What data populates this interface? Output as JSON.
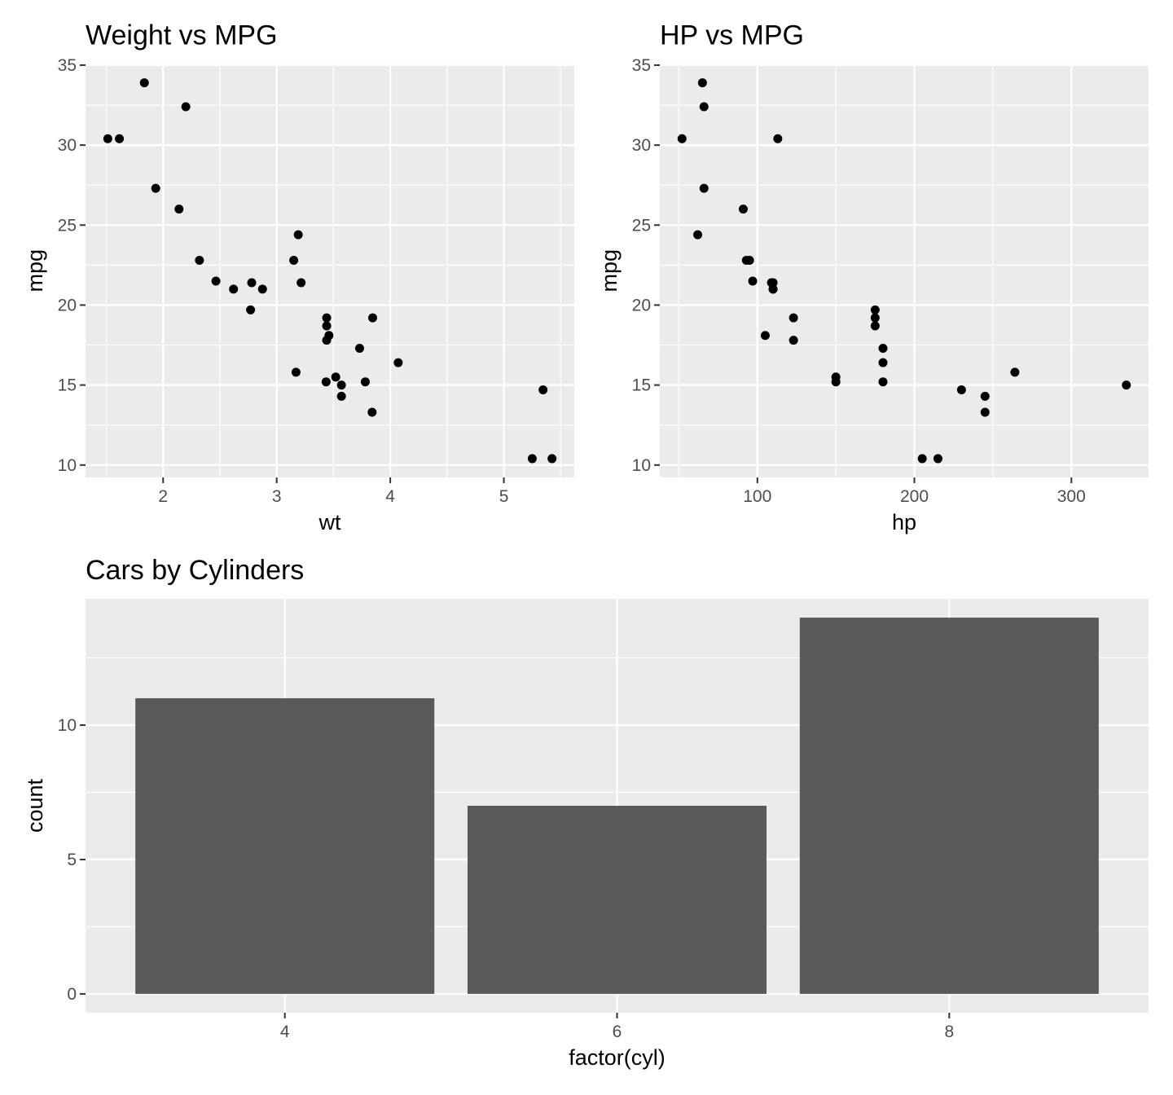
{
  "chart_data": [
    {
      "type": "scatter",
      "title": "Weight vs MPG",
      "xlabel": "wt",
      "ylabel": "mpg",
      "xlim": [
        1.317,
        5.62
      ],
      "ylim": [
        9.225,
        35.075
      ],
      "xticks": [
        2,
        3,
        4,
        5
      ],
      "xminor": [
        1.5,
        2.5,
        3.5,
        4.5,
        5.5
      ],
      "yticks": [
        10,
        15,
        20,
        25,
        30,
        35
      ],
      "yminor": [
        12.5,
        17.5,
        22.5,
        27.5,
        32.5
      ],
      "grid": true,
      "x": [
        2.62,
        2.875,
        2.32,
        3.215,
        3.44,
        3.46,
        3.57,
        3.19,
        3.15,
        3.44,
        3.44,
        4.07,
        3.73,
        3.78,
        5.25,
        5.424,
        5.345,
        2.2,
        1.615,
        1.835,
        2.465,
        3.52,
        3.435,
        3.84,
        3.845,
        1.935,
        2.14,
        1.513,
        3.17,
        2.77,
        3.57,
        2.78
      ],
      "y": [
        21,
        21,
        22.8,
        21.4,
        18.7,
        18.1,
        14.3,
        24.4,
        22.8,
        19.2,
        17.8,
        16.4,
        17.3,
        15.2,
        10.4,
        10.4,
        14.7,
        32.4,
        30.4,
        33.9,
        21.5,
        15.5,
        15.2,
        13.3,
        19.2,
        27.3,
        26,
        30.4,
        15.8,
        19.7,
        15,
        21.4
      ]
    },
    {
      "type": "scatter",
      "title": "HP vs MPG",
      "xlabel": "hp",
      "ylabel": "mpg",
      "xlim": [
        37.85,
        349.15
      ],
      "ylim": [
        9.225,
        35.075
      ],
      "xticks": [
        100,
        200,
        300
      ],
      "xminor": [
        50,
        150,
        250
      ],
      "yticks": [
        10,
        15,
        20,
        25,
        30,
        35
      ],
      "yminor": [
        12.5,
        17.5,
        22.5,
        27.5,
        32.5
      ],
      "grid": true,
      "x": [
        110,
        110,
        93,
        110,
        175,
        105,
        245,
        62,
        95,
        123,
        123,
        180,
        180,
        180,
        205,
        215,
        230,
        66,
        52,
        65,
        97,
        150,
        150,
        245,
        175,
        66,
        91,
        113,
        264,
        175,
        335,
        109
      ],
      "y": [
        21,
        21,
        22.8,
        21.4,
        18.7,
        18.1,
        14.3,
        24.4,
        22.8,
        19.2,
        17.8,
        16.4,
        17.3,
        15.2,
        10.4,
        10.4,
        14.7,
        32.4,
        30.4,
        33.9,
        21.5,
        15.5,
        15.2,
        13.3,
        19.2,
        27.3,
        26,
        30.4,
        15.8,
        19.7,
        15,
        21.4
      ]
    },
    {
      "type": "bar",
      "title": "Cars by Cylinders",
      "xlabel": "factor(cyl)",
      "ylabel": "count",
      "categories": [
        "4",
        "6",
        "8"
      ],
      "values": [
        11,
        7,
        14
      ],
      "ylim": [
        -0.7,
        14.7
      ],
      "yticks": [
        0,
        5,
        10
      ],
      "yminor": [
        2.5,
        7.5,
        12.5
      ],
      "grid": true,
      "bar_color": "#595959"
    }
  ],
  "colors": {
    "panel": "#ebebeb",
    "grid": "#ffffff",
    "point": "#000000",
    "tick_text": "#4d4d4d"
  }
}
